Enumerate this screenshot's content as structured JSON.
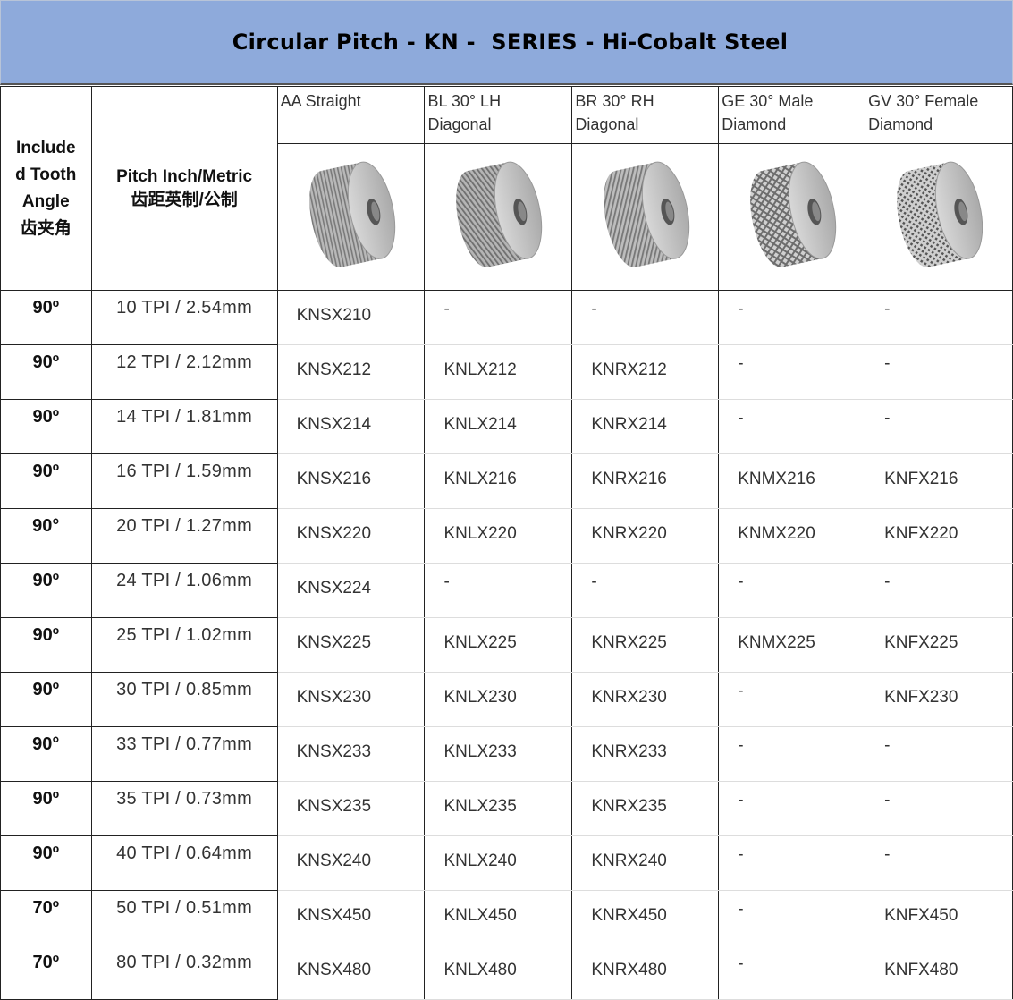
{
  "title": "Circular Pitch - KN -  SERIES - Hi-Cobalt Steel",
  "header": {
    "angle_label_lines": [
      "Include",
      "d Tooth",
      "Angle",
      "齿夹角"
    ],
    "pitch_label_lines": [
      "Pitch Inch/Metric",
      "齿距英制/公制"
    ],
    "types": [
      {
        "lines": [
          "AA Straight"
        ],
        "icon": "straight-knurl-wheel-icon",
        "pattern": "straight"
      },
      {
        "lines": [
          "BL 30° LH",
          "Diagonal"
        ],
        "icon": "left-diagonal-knurl-wheel-icon",
        "pattern": "left"
      },
      {
        "lines": [
          "BR 30° RH",
          "Diagonal"
        ],
        "icon": "right-diagonal-knurl-wheel-icon",
        "pattern": "right"
      },
      {
        "lines": [
          "GE 30° Male",
          "Diamond"
        ],
        "icon": "male-diamond-knurl-wheel-icon",
        "pattern": "male"
      },
      {
        "lines": [
          "GV 30° Female",
          "Diamond"
        ],
        "icon": "female-diamond-knurl-wheel-icon",
        "pattern": "female"
      }
    ]
  },
  "colors": {
    "title_bg": "#8eaadb",
    "border": "#222222"
  },
  "rows": [
    {
      "angle": "90º",
      "pitch": "10 TPI / 2.54mm",
      "codes": [
        "KNSX210",
        "-",
        "-",
        "-",
        "-"
      ]
    },
    {
      "angle": "90º",
      "pitch": "12 TPI / 2.12mm",
      "codes": [
        "KNSX212",
        "KNLX212",
        "KNRX212",
        "-",
        "-"
      ]
    },
    {
      "angle": "90º",
      "pitch": "14 TPI / 1.81mm",
      "codes": [
        "KNSX214",
        "KNLX214",
        "KNRX214",
        "-",
        "-"
      ]
    },
    {
      "angle": "90º",
      "pitch": "16 TPI / 1.59mm",
      "codes": [
        "KNSX216",
        "KNLX216",
        "KNRX216",
        "KNMX216",
        "KNFX216"
      ]
    },
    {
      "angle": "90°",
      "pitch": "20 TPI / 1.27mm",
      "codes": [
        "KNSX220",
        "KNLX220",
        "KNRX220",
        "KNMX220",
        "KNFX220"
      ]
    },
    {
      "angle": "90º",
      "pitch": "24 TPI / 1.06mm",
      "codes": [
        "KNSX224",
        "-",
        "-",
        "-",
        "-"
      ]
    },
    {
      "angle": "90º",
      "pitch": "25 TPI / 1.02mm",
      "codes": [
        "KNSX225",
        "KNLX225",
        "KNRX225",
        "KNMX225",
        "KNFX225"
      ]
    },
    {
      "angle": "90º",
      "pitch": "30 TPI / 0.85mm",
      "codes": [
        "KNSX230",
        "KNLX230",
        "KNRX230",
        "-",
        "KNFX230"
      ]
    },
    {
      "angle": "90°",
      "pitch": "33 TPI / 0.77mm",
      "codes": [
        "KNSX233",
        "KNLX233",
        "KNRX233",
        "-",
        "-"
      ]
    },
    {
      "angle": "90º",
      "pitch": "35 TPI / 0.73mm",
      "codes": [
        "KNSX235",
        "KNLX235",
        "KNRX235",
        "-",
        "-"
      ]
    },
    {
      "angle": "90º",
      "pitch": "40 TPI / 0.64mm",
      "codes": [
        "KNSX240",
        "KNLX240",
        "KNRX240",
        "-",
        "-"
      ]
    },
    {
      "angle": "70º",
      "pitch": "50 TPI / 0.51mm",
      "codes": [
        "KNSX450",
        "KNLX450",
        "KNRX450",
        "-",
        "KNFX450"
      ]
    },
    {
      "angle": "70º",
      "pitch": "80 TPI / 0.32mm",
      "codes": [
        "KNSX480",
        "KNLX480",
        "KNRX480",
        "-",
        "KNFX480"
      ]
    }
  ]
}
